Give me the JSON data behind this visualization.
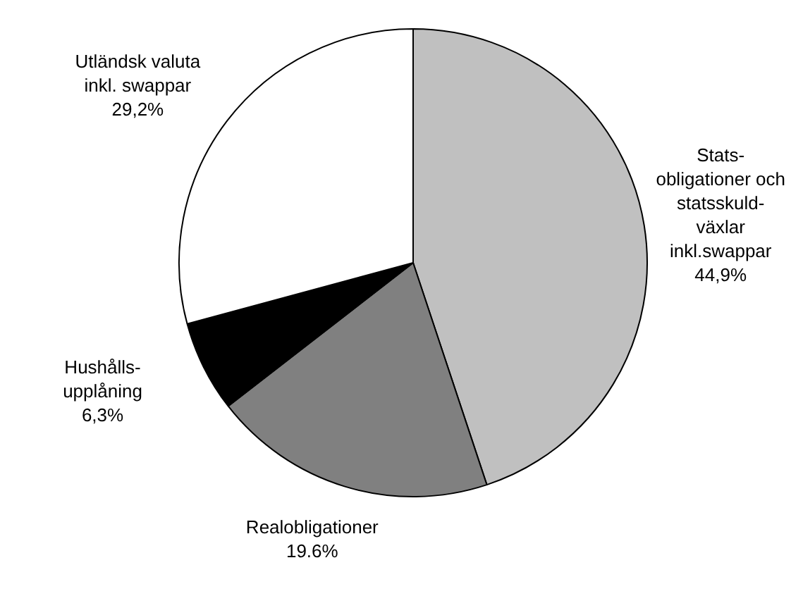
{
  "chart_data": {
    "type": "pie",
    "categories": [
      "Stats-\nobligationer och\nstatsskuld-\nväxlar\ninkl.swappar",
      "Realobligationer",
      "Hushålls-\nupplåning",
      "Utländsk valuta\ninkl. swappar"
    ],
    "values": [
      44.9,
      19.6,
      6.3,
      29.2
    ],
    "value_labels": [
      "44,9%",
      "19.6%",
      "6,3%",
      "29,2%"
    ],
    "colors": [
      "#c0c0c0",
      "#808080",
      "#000000",
      "#ffffff"
    ],
    "legend": false
  }
}
